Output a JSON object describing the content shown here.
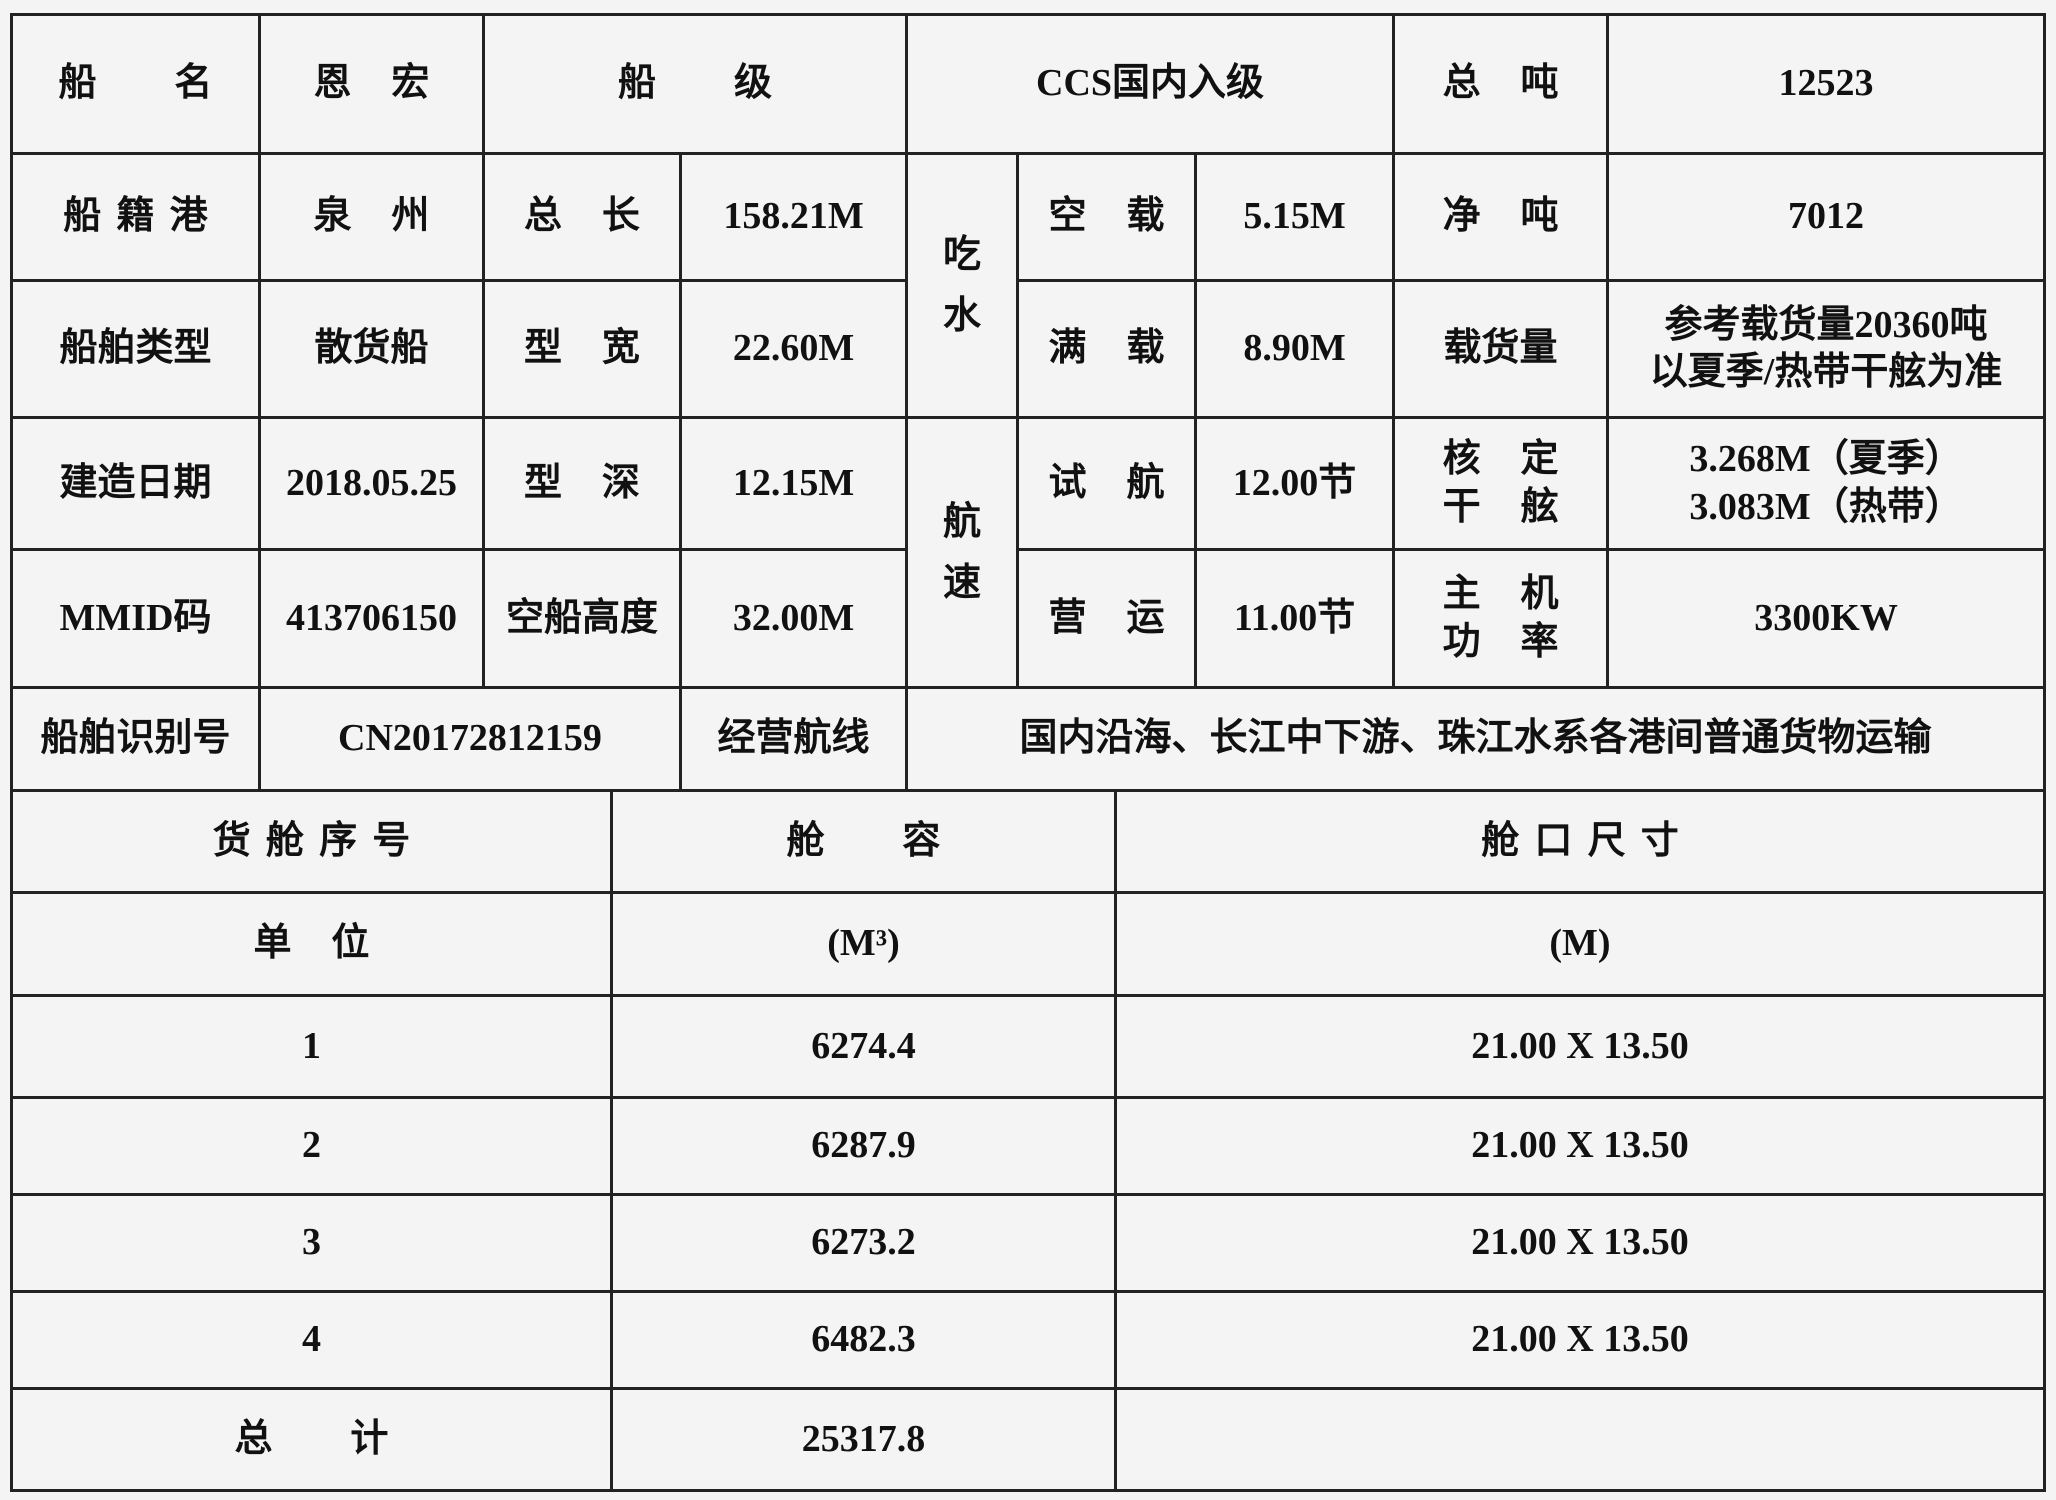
{
  "ship_info": {
    "name_label": "船 名",
    "name": "恩 宏",
    "class_label": "船 级",
    "class": "CCS国内入级",
    "gross_tonnage_label": "总 吨",
    "gross_tonnage": "12523",
    "port_label": "船籍港",
    "port": "泉 州",
    "length_label": "总 长",
    "length": "158.21M",
    "draft_label": [
      "吃",
      "水"
    ],
    "light_draft_label": "空 载",
    "light_draft": "5.15M",
    "net_tonnage_label": "净 吨",
    "net_tonnage": "7012",
    "type_label": "船舶类型",
    "type": "散货船",
    "breadth_label": "型 宽",
    "breadth": "22.60M",
    "full_draft_label": "满 载",
    "full_draft": "8.90M",
    "cargo_label": "载货量",
    "cargo": [
      "参考载货量20360吨",
      "以夏季/热带干舷为准"
    ],
    "build_date_label": "建造日期",
    "build_date": "2018.05.25",
    "depth_label": "型 深",
    "depth": "12.15M",
    "speed_label": [
      "航",
      "速"
    ],
    "trial_speed_label": "试 航",
    "trial_speed": "12.00节",
    "freeboard_label": [
      "核 定",
      "干 舷"
    ],
    "freeboard": [
      "3.268M（夏季）",
      "3.083M（热带）"
    ],
    "mmsi_label": "MMID码",
    "mmsi": "413706150",
    "air_draft_label": "空船高度",
    "air_draft": "32.00M",
    "service_speed_label": "营 运",
    "service_speed": "11.00节",
    "engine_label": [
      "主 机",
      "功 率"
    ],
    "engine_power": "3300KW",
    "id_label": "船舶识别号",
    "id": "CN20172812159",
    "route_label": "经营航线",
    "route": "国内沿海、长江中下游、珠江水系各港间普通货物运输"
  },
  "holds": {
    "headers": [
      "货舱序号",
      "舱 容",
      "舱口尺寸"
    ],
    "unit_label": "单 位",
    "units": [
      "(M³)",
      "(M)"
    ],
    "rows": [
      {
        "no": "1",
        "capacity": "6274.4",
        "hatch": "21.00 X 13.50"
      },
      {
        "no": "2",
        "capacity": "6287.9",
        "hatch": "21.00 X 13.50"
      },
      {
        "no": "3",
        "capacity": "6273.2",
        "hatch": "21.00 X 13.50"
      },
      {
        "no": "4",
        "capacity": "6482.3",
        "hatch": "21.00 X 13.50"
      }
    ],
    "total_label": "总 计",
    "total": "25317.8"
  }
}
